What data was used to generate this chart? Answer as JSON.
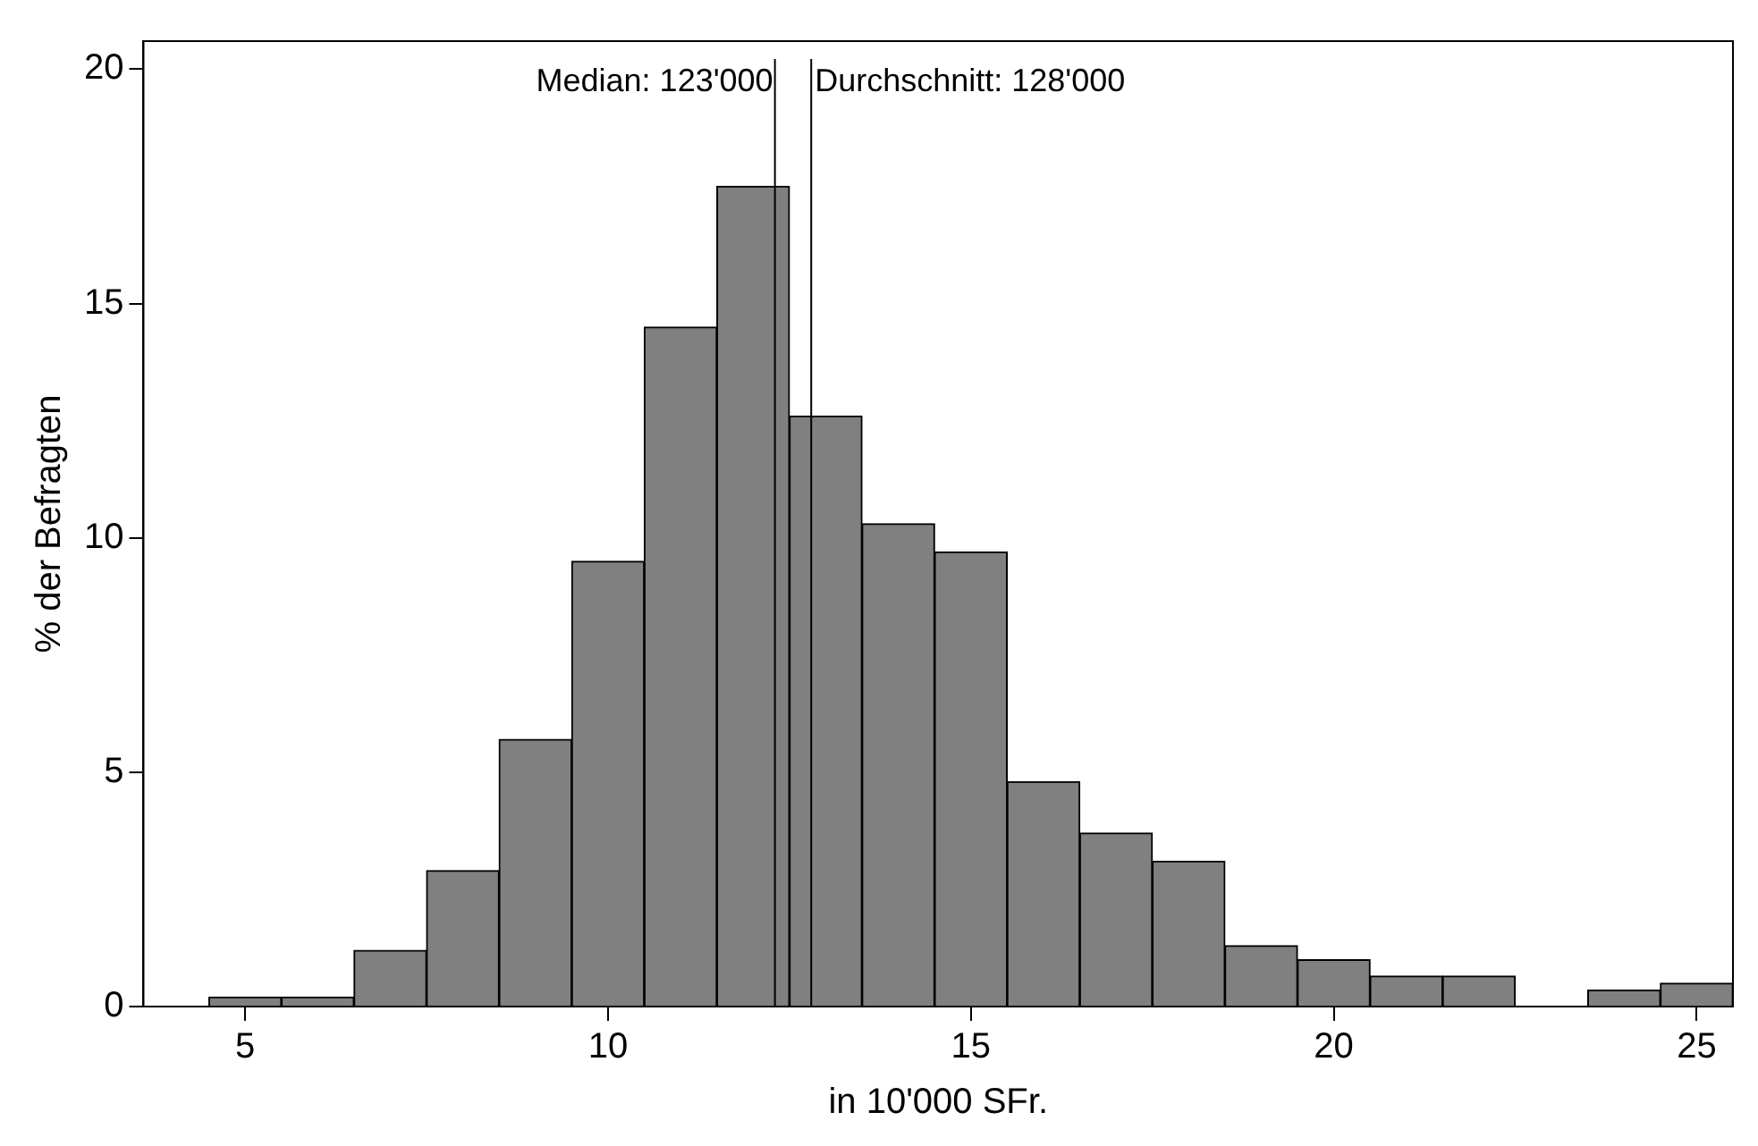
{
  "chart_data": {
    "type": "histogram",
    "xlabel": "in 10'000 SFr.",
    "ylabel": "% der Befragten",
    "bins": [
      4.5,
      5.5,
      6.5,
      7.5,
      8.5,
      9.5,
      10.5,
      11.5,
      12.5,
      13.5,
      14.5,
      15.5,
      16.5,
      17.5,
      18.5,
      19.5,
      20.5,
      21.5,
      22.5,
      23.5,
      24.5,
      25.5
    ],
    "values": [
      0.2,
      0.2,
      1.2,
      2.9,
      5.7,
      9.5,
      14.5,
      17.5,
      12.6,
      10.3,
      9.7,
      4.8,
      3.7,
      3.1,
      1.3,
      1.0,
      0.65,
      0.65,
      0,
      0.35,
      0.5
    ],
    "color": "#808080",
    "xlim": [
      3.6,
      25.5
    ],
    "xticks": [
      5,
      10,
      15,
      20,
      25
    ],
    "ylim": [
      0,
      20.6
    ],
    "yticks": [
      0,
      5,
      10,
      15,
      20
    ],
    "grid": false,
    "legend": false,
    "ref_lines": [
      {
        "axis": "x",
        "value": 12.3
      },
      {
        "axis": "x",
        "value": 12.8
      }
    ],
    "annotations": [
      "Median: 123'000",
      "Durchschnitt: 128'000"
    ]
  }
}
